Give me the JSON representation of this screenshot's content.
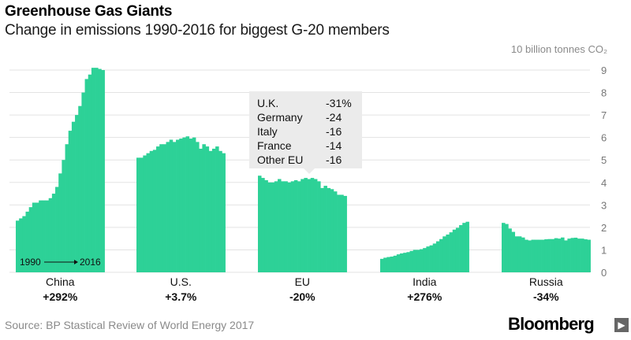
{
  "header": {
    "title": "Greenhouse Gas Giants",
    "subtitle": "Change in emissions 1990-2016 for biggest G-20 members",
    "unit_label": "10 billion tonnes CO₂"
  },
  "footer": {
    "source": "Source: BP Stastical Review of World Energy 2017",
    "logo": "Bloomberg",
    "logo_mark": "▶"
  },
  "colors": {
    "fill": "#2dd197",
    "grid": "#e3e3e3",
    "tooltip": "#ebebeb"
  },
  "chart_data": {
    "type": "area",
    "title": "Greenhouse Gas Giants",
    "subtitle": "Change in emissions 1990-2016 for biggest G-20 members",
    "ylabel": "10 billion tonnes CO₂",
    "ylim": [
      0,
      9
    ],
    "yticks": [
      0,
      1,
      2,
      3,
      4,
      5,
      6,
      7,
      8,
      9
    ],
    "grid": true,
    "years": [
      1990,
      1991,
      1992,
      1993,
      1994,
      1995,
      1996,
      1997,
      1998,
      1999,
      2000,
      2001,
      2002,
      2003,
      2004,
      2005,
      2006,
      2007,
      2008,
      2009,
      2010,
      2011,
      2012,
      2013,
      2014,
      2015,
      2016
    ],
    "time_legend": {
      "start": "1990",
      "end": "2016"
    },
    "series": [
      {
        "name": "China",
        "change": "+292%",
        "values": [
          2.3,
          2.4,
          2.5,
          2.7,
          2.9,
          3.1,
          3.1,
          3.2,
          3.2,
          3.2,
          3.3,
          3.5,
          3.8,
          4.4,
          5.0,
          5.7,
          6.3,
          6.7,
          7.0,
          7.4,
          8.0,
          8.6,
          8.8,
          9.1,
          9.1,
          9.05,
          9.0
        ]
      },
      {
        "name": "U.S.",
        "change": "+3.7%",
        "values": [
          5.1,
          5.1,
          5.2,
          5.3,
          5.4,
          5.45,
          5.6,
          5.7,
          5.7,
          5.8,
          5.9,
          5.8,
          5.9,
          5.95,
          6.0,
          6.05,
          5.95,
          6.0,
          5.8,
          5.5,
          5.7,
          5.6,
          5.4,
          5.5,
          5.6,
          5.4,
          5.3
        ]
      },
      {
        "name": "EU",
        "change": "-20%",
        "values": [
          4.3,
          4.2,
          4.1,
          4.0,
          4.0,
          4.05,
          4.15,
          4.05,
          4.05,
          4.0,
          4.05,
          4.1,
          4.05,
          4.15,
          4.2,
          4.15,
          4.2,
          4.15,
          4.05,
          3.75,
          3.85,
          3.75,
          3.7,
          3.6,
          3.45,
          3.45,
          3.4
        ]
      },
      {
        "name": "India",
        "change": "+276%",
        "values": [
          0.6,
          0.65,
          0.68,
          0.7,
          0.74,
          0.8,
          0.84,
          0.87,
          0.9,
          0.95,
          1.0,
          1.0,
          1.03,
          1.08,
          1.15,
          1.2,
          1.28,
          1.38,
          1.48,
          1.6,
          1.68,
          1.78,
          1.9,
          1.98,
          2.1,
          2.2,
          2.25
        ]
      },
      {
        "name": "Russia",
        "change": "-34%",
        "values": [
          2.2,
          2.15,
          1.95,
          1.8,
          1.6,
          1.6,
          1.55,
          1.45,
          1.42,
          1.45,
          1.45,
          1.45,
          1.45,
          1.47,
          1.48,
          1.48,
          1.52,
          1.5,
          1.55,
          1.42,
          1.5,
          1.53,
          1.54,
          1.5,
          1.5,
          1.47,
          1.45
        ]
      }
    ],
    "annotation": {
      "series": "EU",
      "items": [
        {
          "label": "U.K.",
          "value": "-31%"
        },
        {
          "label": "Germany",
          "value": "-24"
        },
        {
          "label": "Italy",
          "value": "-16"
        },
        {
          "label": "France",
          "value": "-14"
        },
        {
          "label": "Other EU",
          "value": "-16"
        }
      ]
    }
  }
}
